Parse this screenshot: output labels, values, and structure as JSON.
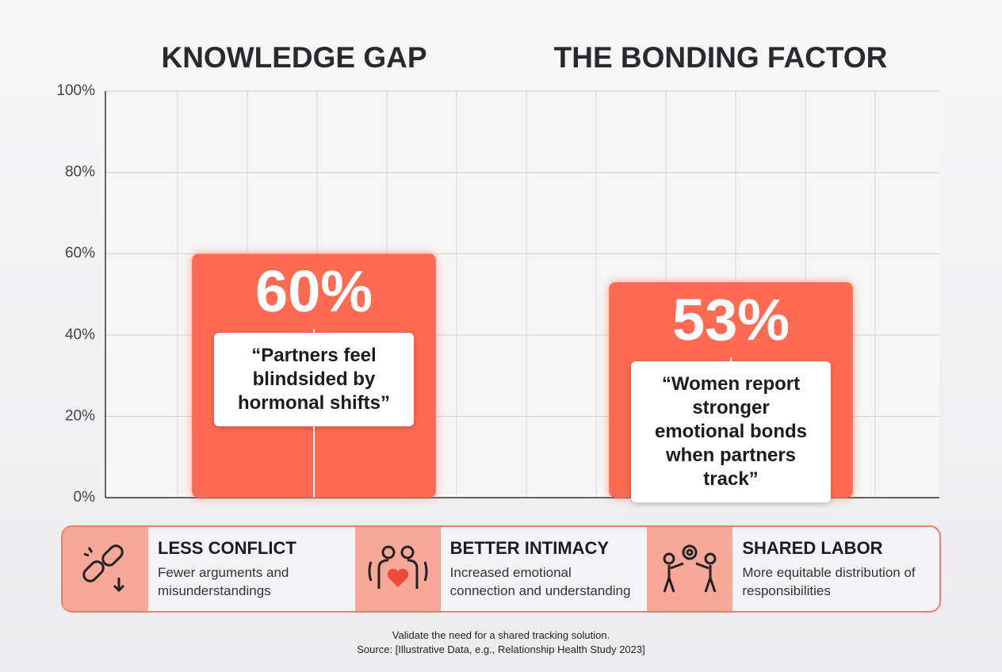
{
  "chart_data": {
    "type": "bar",
    "categories": [
      "KNOWLEDGE GAP",
      "THE BONDING FACTOR"
    ],
    "values": [
      60,
      53
    ],
    "value_labels": [
      "60%",
      "53%"
    ],
    "annotations": [
      "“Partners feel blindsided by hormonal shifts”",
      "“Women report stronger emotional bonds when partners track”"
    ],
    "color": "#ff6a52",
    "ylim": [
      0,
      100
    ],
    "yticks": [
      {
        "value": 0,
        "label": "0%"
      },
      {
        "value": 20,
        "label": "20%"
      },
      {
        "value": 40,
        "label": "40%"
      },
      {
        "value": 60,
        "label": "60%"
      },
      {
        "value": 80,
        "label": "80%"
      },
      {
        "value": 100,
        "label": "100%"
      }
    ],
    "grid": true
  },
  "benefits": [
    {
      "title": "LESS CONFLICT",
      "text": "Fewer arguments and misunderstandings"
    },
    {
      "title": "BETTER INTIMACY",
      "text": "Increased emotional connection and understanding"
    },
    {
      "title": "SHARED LABOR",
      "text": "More equitable distribution of responsibilities"
    }
  ],
  "footer": {
    "note": "Validate the need for a shared tracking solution.",
    "source": "Source: [Illustrative Data, e.g., Relationship Health Study 2023]"
  }
}
